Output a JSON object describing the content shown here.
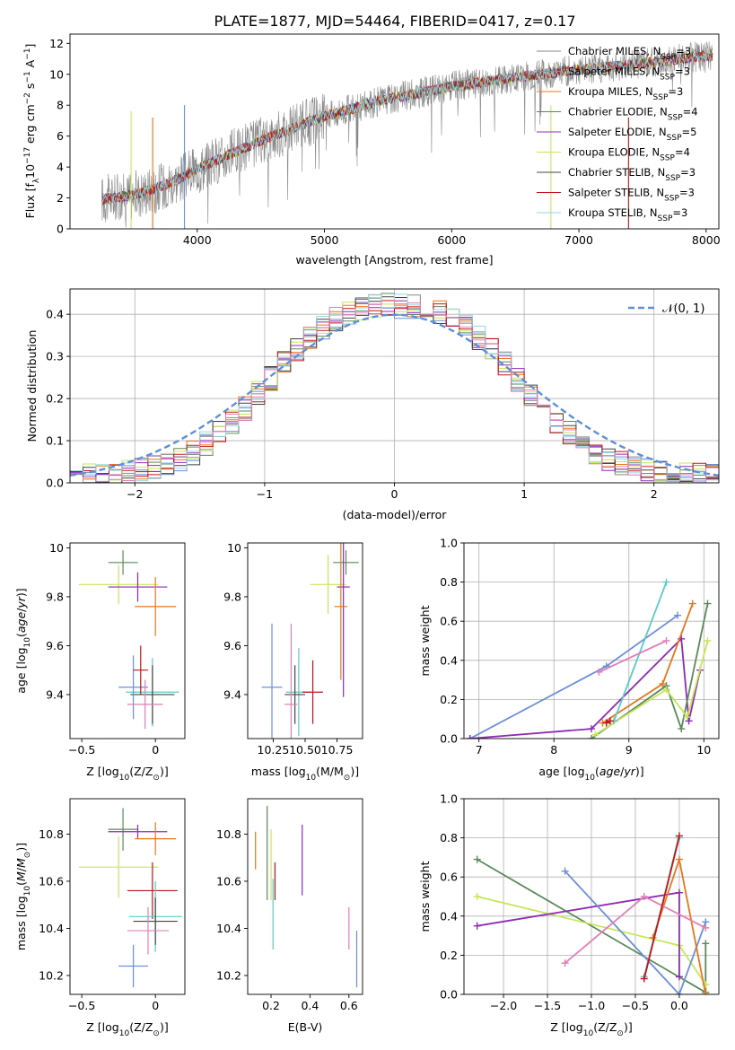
{
  "figure_title": "PLATE=1877, MJD=54464, FIBERID=0417, z=0.17",
  "colors": {
    "Chabrier MILES": "#888888",
    "Salpeter MILES": "#6b8fd8",
    "Kroupa MILES": "#e7771e",
    "Chabrier ELODIE": "#5a8a5a",
    "Salpeter ELODIE": "#8e2bb5",
    "Kroupa ELODIE": "#c7e65a",
    "Chabrier STELIB": "#444444",
    "Salpeter STELIB": "#c0161b",
    "Kroupa STELIB": "#9ad6e6",
    "pink": "#e27fb8",
    "cyan": "#5ec9c9",
    "normal": "#5f8fd6"
  },
  "chart_data": [
    {
      "id": "spectrum",
      "type": "line",
      "xlabel": "wavelength [Angstrom, rest frame]",
      "ylabel_main": "Flux [f",
      "ylabel_sub": "λ",
      "ylabel_mid": "10",
      "ylabel_sup1": "−17",
      "ylabel_mid2": " erg cm",
      "ylabel_sup2": "−2",
      "ylabel_mid3": " s",
      "ylabel_sup3": "−1",
      "ylabel_mid4": " A",
      "ylabel_sup4": "−1",
      "ylabel_end": "]",
      "xlim": [
        3000,
        8100
      ],
      "ylim": [
        0,
        12.6
      ],
      "xticks": [
        4000,
        5000,
        6000,
        7000,
        8000
      ],
      "yticks": [
        0,
        2,
        4,
        6,
        8,
        10,
        12
      ],
      "data_range": [
        3250,
        8050
      ],
      "continuum": {
        "x": [
          3250,
          3500,
          3700,
          3900,
          4000,
          4200,
          4500,
          5000,
          5500,
          6000,
          6500,
          7000,
          7500,
          8000,
          8050
        ],
        "y": [
          1.9,
          2.2,
          2.7,
          3.4,
          3.9,
          4.6,
          5.7,
          7.3,
          8.4,
          9.2,
          9.8,
          10.3,
          10.7,
          11.2,
          11.2
        ]
      },
      "legend": [
        {
          "name": "Chabrier MILES",
          "nssp": "3"
        },
        {
          "name": "Salpeter MILES",
          "nssp": "3"
        },
        {
          "name": "Kroupa MILES",
          "nssp": "3"
        },
        {
          "name": "Chabrier ELODIE",
          "nssp": "4"
        },
        {
          "name": "Salpeter ELODIE",
          "nssp": "5"
        },
        {
          "name": "Kroupa ELODIE",
          "nssp": "4"
        },
        {
          "name": "Chabrier STELIB",
          "nssp": "3"
        },
        {
          "name": "Salpeter STELIB",
          "nssp": "3"
        },
        {
          "name": "Kroupa STELIB",
          "nssp": "3"
        }
      ],
      "nssp_prefix": "N",
      "nssp_sub": "SSP",
      "legend_placement": "upper-right"
    },
    {
      "id": "residuals",
      "type": "histogram",
      "xlabel": "(data-model)/error",
      "ylabel": "Normed distribution",
      "xlim": [
        -2.5,
        2.5
      ],
      "ylim": [
        0,
        0.46
      ],
      "xticks": [
        -2,
        -1,
        0,
        1,
        2
      ],
      "yticks": [
        0.0,
        0.1,
        0.2,
        0.3,
        0.4
      ],
      "grid": true,
      "bin_width": 0.1,
      "bin_start": -2.5,
      "legend_label": "𝒩(0, 1)",
      "legend_placement": "upper-right"
    },
    {
      "id": "age-Z",
      "type": "errorbar",
      "xlabel_main": "Z [log",
      "xlabel_sub": "10",
      "xlabel_end": "(Z/Z",
      "xlabel_sub2": "⊙",
      "xlabel_close": ")]",
      "ylabel": "age  [log10(age/yr)]",
      "xlim": [
        -0.58,
        0.2
      ],
      "ylim": [
        9.22,
        10.02
      ],
      "xticks": [
        -0.5,
        0.0
      ],
      "yticks": [
        9.4,
        9.6,
        9.8,
        10.0
      ],
      "points": [
        {
          "c": "Chabrier ELODIE",
          "x": -0.22,
          "xerr": 0.1,
          "y": 9.94,
          "yerr": 0.05
        },
        {
          "c": "Kroupa ELODIE",
          "x": -0.25,
          "xerr": 0.27,
          "y": 9.85,
          "yerr": 0.08
        },
        {
          "c": "Salpeter ELODIE",
          "x": -0.12,
          "xerr": 0.2,
          "y": 9.84,
          "yerr": 0.06
        },
        {
          "c": "Kroupa MILES",
          "x": 0.0,
          "xerr": 0.14,
          "y": 9.76,
          "yerr": 0.12
        },
        {
          "c": "cyan",
          "x": -0.02,
          "xerr": 0.18,
          "y": 9.41,
          "yerr": 0.14
        },
        {
          "c": "Chabrier STELIB",
          "x": -0.02,
          "xerr": 0.15,
          "y": 9.4,
          "yerr": 0.12
        },
        {
          "c": "Salpeter MILES",
          "x": -0.15,
          "xerr": 0.1,
          "y": 9.43,
          "yerr": 0.13
        },
        {
          "c": "Salpeter STELIB",
          "x": -0.1,
          "xerr": 0.05,
          "y": 9.5,
          "yerr": 0.1
        },
        {
          "c": "pink",
          "x": -0.07,
          "xerr": 0.12,
          "y": 9.36,
          "yerr": 0.1
        }
      ]
    },
    {
      "id": "age-mass",
      "type": "errorbar",
      "xlabel_main": "mass [log",
      "xlabel_sub": "10",
      "xlabel_end": "(M/M",
      "xlabel_sub2": "⊙",
      "xlabel_close": ")]",
      "xlim": [
        10.05,
        10.95
      ],
      "ylim": [
        9.22,
        10.02
      ],
      "xticks": [
        10.25,
        10.5,
        10.75
      ],
      "xtick_labels": [
        "10.25",
        "10.50",
        "10.75"
      ],
      "yticks": [
        9.4,
        9.6,
        9.8,
        10.0
      ],
      "points": [
        {
          "c": "Chabrier ELODIE",
          "x": 10.82,
          "xerr": 0.1,
          "y": 9.94,
          "yerr": 0.05
        },
        {
          "c": "Kroupa ELODIE",
          "x": 10.68,
          "xerr": 0.14,
          "y": 9.85,
          "yerr": 0.12
        },
        {
          "c": "Salpeter ELODIE",
          "x": 10.8,
          "xerr": 0.05,
          "y": 9.84,
          "yerr": 0.45
        },
        {
          "c": "Kroupa MILES",
          "x": 10.78,
          "xerr": 0.05,
          "y": 9.76,
          "yerr": 0.3
        },
        {
          "c": "Salpeter MILES",
          "x": 10.24,
          "xerr": 0.08,
          "y": 9.43,
          "yerr": 0.26
        },
        {
          "c": "cyan",
          "x": 10.45,
          "xerr": 0.1,
          "y": 9.41,
          "yerr": 0.18
        },
        {
          "c": "Chabrier STELIB",
          "x": 10.42,
          "xerr": 0.08,
          "y": 9.4,
          "yerr": 0.12
        },
        {
          "c": "Salpeter STELIB",
          "x": 10.56,
          "xerr": 0.08,
          "y": 9.41,
          "yerr": 0.13
        },
        {
          "c": "pink",
          "x": 10.39,
          "xerr": 0.05,
          "y": 9.36,
          "yerr": 0.33
        }
      ]
    },
    {
      "id": "weight-age",
      "type": "line",
      "xlabel": "age  [log10(age/yr)]",
      "ylabel": "mass weight",
      "xlim": [
        6.8,
        10.2
      ],
      "ylim": [
        0,
        1.0
      ],
      "xticks": [
        7,
        8,
        9,
        10
      ],
      "yticks": [
        0.0,
        0.2,
        0.4,
        0.6,
        0.8,
        1.0
      ],
      "grid": true,
      "series": [
        {
          "c": "Salpeter MILES",
          "x": [
            6.88,
            8.7,
            9.65
          ],
          "y": [
            0.0,
            0.37,
            0.63
          ]
        },
        {
          "c": "Salpeter ELODIE",
          "x": [
            6.88,
            8.5,
            9.7,
            9.8,
            9.95
          ],
          "y": [
            0.0,
            0.05,
            0.51,
            0.09,
            0.35
          ]
        },
        {
          "c": "Chabrier ELODIE",
          "x": [
            8.5,
            9.5,
            9.7,
            10.05
          ],
          "y": [
            0.0,
            0.27,
            0.05,
            0.69
          ]
        },
        {
          "c": "Kroupa MILES",
          "x": [
            8.65,
            9.45,
            9.85
          ],
          "y": [
            0.08,
            0.28,
            0.69
          ]
        },
        {
          "c": "Kroupa ELODIE",
          "x": [
            8.55,
            9.5,
            9.78,
            10.05
          ],
          "y": [
            0.02,
            0.25,
            0.11,
            0.5
          ]
        },
        {
          "c": "cyan",
          "x": [
            8.8,
            9.5
          ],
          "y": [
            0.09,
            0.8
          ]
        },
        {
          "c": "Salpeter STELIB",
          "x": [
            8.7,
            8.75
          ],
          "y": [
            0.08,
            0.09
          ]
        },
        {
          "c": "pink",
          "x": [
            8.6,
            9.5
          ],
          "y": [
            0.34,
            0.5
          ]
        }
      ]
    },
    {
      "id": "mass-Z",
      "type": "errorbar",
      "xlabel_main": "Z [log",
      "xlabel_sub": "10",
      "xlabel_end": "(Z/Z",
      "xlabel_sub2": "⊙",
      "xlabel_close": ")]",
      "ylabel": "mass [log10(M/M⊙)]",
      "xlim": [
        -0.58,
        0.2
      ],
      "ylim": [
        10.12,
        10.95
      ],
      "xticks": [
        -0.5,
        0.0
      ],
      "yticks": [
        10.2,
        10.4,
        10.6,
        10.8
      ],
      "points": [
        {
          "c": "Chabrier ELODIE",
          "x": -0.22,
          "xerr": 0.1,
          "y": 10.82,
          "yerr": 0.09
        },
        {
          "c": "Salpeter ELODIE",
          "x": -0.12,
          "xerr": 0.2,
          "y": 10.81,
          "yerr": 0.03
        },
        {
          "c": "Kroupa MILES",
          "x": 0.0,
          "xerr": 0.14,
          "y": 10.78,
          "yerr": 0.07
        },
        {
          "c": "Kroupa ELODIE",
          "x": -0.25,
          "xerr": 0.27,
          "y": 10.66,
          "yerr": 0.13
        },
        {
          "c": "Salpeter STELIB",
          "x": -0.02,
          "xerr": 0.17,
          "y": 10.56,
          "yerr": 0.12
        },
        {
          "c": "cyan",
          "x": 0.0,
          "xerr": 0.18,
          "y": 10.45,
          "yerr": 0.15
        },
        {
          "c": "Chabrier STELIB",
          "x": 0.0,
          "xerr": 0.15,
          "y": 10.43,
          "yerr": 0.1
        },
        {
          "c": "pink",
          "x": -0.05,
          "xerr": 0.14,
          "y": 10.39,
          "yerr": 0.1
        },
        {
          "c": "Salpeter MILES",
          "x": -0.15,
          "xerr": 0.1,
          "y": 10.24,
          "yerr": 0.09
        }
      ]
    },
    {
      "id": "mass-ebv",
      "type": "errorbar",
      "xlabel": "E(B-V)",
      "xlim": [
        0.08,
        0.67
      ],
      "ylim": [
        10.12,
        10.95
      ],
      "xticks": [
        0.2,
        0.4,
        0.6
      ],
      "yticks": [
        10.2,
        10.4,
        10.6,
        10.8
      ],
      "points": [
        {
          "c": "Chabrier ELODIE",
          "x": 0.18,
          "xerr": 0,
          "y": 10.72,
          "yerr": 0.2
        },
        {
          "c": "Kroupa ELODIE",
          "x": 0.2,
          "xerr": 0,
          "y": 10.67,
          "yerr": 0.15
        },
        {
          "c": "Kroupa MILES",
          "x": 0.12,
          "xerr": 0,
          "y": 10.73,
          "yerr": 0.08
        },
        {
          "c": "Salpeter ELODIE",
          "x": 0.36,
          "xerr": 0,
          "y": 10.69,
          "yerr": 0.15
        },
        {
          "c": "Salpeter STELIB",
          "x": 0.22,
          "xerr": 0,
          "y": 10.6,
          "yerr": 0.08
        },
        {
          "c": "cyan",
          "x": 0.21,
          "xerr": 0,
          "y": 10.46,
          "yerr": 0.15
        },
        {
          "c": "pink",
          "x": 0.6,
          "xerr": 0,
          "y": 10.4,
          "yerr": 0.09
        },
        {
          "c": "Salpeter MILES",
          "x": 0.64,
          "xerr": 0,
          "y": 10.27,
          "yerr": 0.12
        }
      ]
    },
    {
      "id": "weight-Z",
      "type": "line",
      "xlabel_main": "Z [log",
      "xlabel_sub": "10",
      "xlabel_end": "(Z/Z",
      "xlabel_sub2": "⊙",
      "xlabel_close": ")]",
      "ylabel": "mass weight",
      "xlim": [
        -2.45,
        0.45
      ],
      "ylim": [
        0,
        1.0
      ],
      "xticks": [
        -2.0,
        -1.5,
        -1.0,
        -0.5,
        0.0
      ],
      "xtick_labels": [
        "−2.0",
        "−1.5",
        "−1.0",
        "−0.5",
        "0.0"
      ],
      "yticks": [
        0.0,
        0.2,
        0.4,
        0.6,
        0.8,
        1.0
      ],
      "grid": true,
      "series": [
        {
          "c": "Chabrier ELODIE",
          "x": [
            -2.3,
            0.3,
            0.3
          ],
          "y": [
            0.69,
            0.01,
            0.26
          ]
        },
        {
          "c": "Kroupa ELODIE",
          "x": [
            -2.3,
            0.0,
            0.3
          ],
          "y": [
            0.5,
            0.25,
            0.05
          ]
        },
        {
          "c": "Salpeter ELODIE",
          "x": [
            -2.3,
            0.0,
            0.0
          ],
          "y": [
            0.35,
            0.52,
            0.09
          ]
        },
        {
          "c": "Salpeter MILES",
          "x": [
            -1.3,
            0.0,
            0.3
          ],
          "y": [
            0.63,
            0.0,
            0.37
          ]
        },
        {
          "c": "Kroupa MILES",
          "x": [
            -0.3,
            0.0,
            0.3
          ],
          "y": [
            0.29,
            0.69,
            0.0
          ]
        },
        {
          "c": "pink",
          "x": [
            -1.3,
            -0.4,
            0.3
          ],
          "y": [
            0.16,
            0.5,
            0.34
          ]
        },
        {
          "c": "cyan",
          "x": [
            -0.4,
            0.0
          ],
          "y": [
            0.09,
            0.8
          ]
        },
        {
          "c": "Salpeter STELIB",
          "x": [
            -0.4,
            0.0
          ],
          "y": [
            0.08,
            0.81
          ]
        }
      ]
    }
  ]
}
